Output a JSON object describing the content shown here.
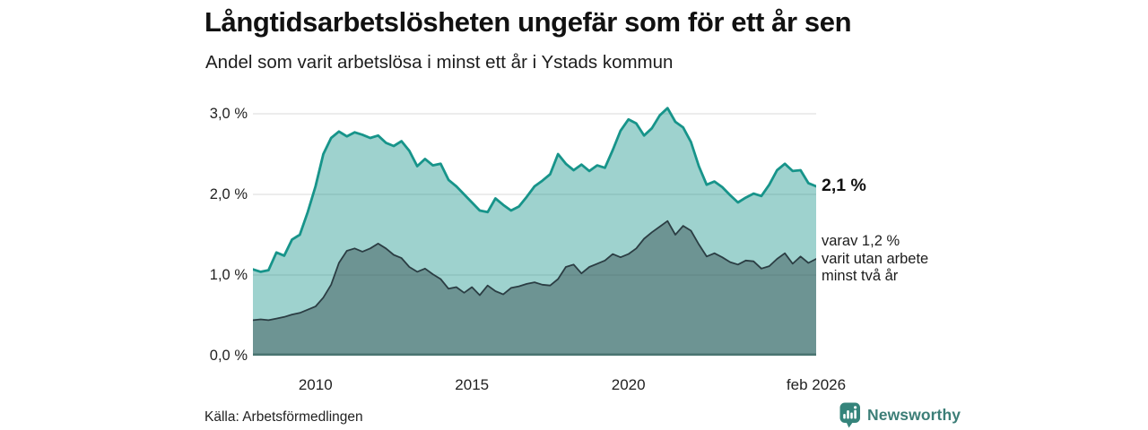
{
  "header": {
    "title": "Långtidsarbetslösheten ungefär som för ett år sen",
    "subtitle": "Andel som varit arbetslösa i minst ett år i Ystads kommun"
  },
  "annotations": {
    "total_end_label": "2,1 %",
    "subset_end_label": "varav 1,2 %\nvarit utan arbete\nminst två år"
  },
  "footer": {
    "source": "Källa: Arbetsförmedlingen",
    "brand_name": "Newsworthy"
  },
  "colors": {
    "line_total": "#17948a",
    "line_subset": "#2b3d43",
    "area_opacity": 0.42,
    "gridline": "#e0e0e0",
    "baseline": "#44706b",
    "brand_teal": "#35847b",
    "text_dark": "#1a1a1a"
  },
  "chart_data": {
    "type": "area",
    "title": "Långtidsarbetslösheten ungefär som för ett år sen",
    "subtitle": "Andel som varit arbetslösa i minst ett år i Ystads kommun",
    "x_axis": {
      "start_year": 2008.0,
      "step_years": 0.25,
      "range": [
        2008.0,
        2026.0
      ],
      "ticks": [
        {
          "label": "2010",
          "year": 2010
        },
        {
          "label": "2015",
          "year": 2015
        },
        {
          "label": "2020",
          "year": 2020
        },
        {
          "label": "feb 2026",
          "year": 2026
        }
      ]
    },
    "y_axis": {
      "unit": "%",
      "range": [
        0,
        3.1
      ],
      "gridlines": true,
      "ticks": [
        {
          "label": "0,0 %",
          "value": 0
        },
        {
          "label": "1,0 %",
          "value": 1
        },
        {
          "label": "2,0 %",
          "value": 2
        },
        {
          "label": "3,0 %",
          "value": 3
        }
      ]
    },
    "legend_position": "right-of-line-end",
    "series": [
      {
        "id": "unemployed_min_one_year",
        "label": "2,1 %",
        "end_value": 2.1,
        "values": [
          1.07,
          1.04,
          1.06,
          1.28,
          1.24,
          1.44,
          1.5,
          1.78,
          2.1,
          2.5,
          2.7,
          2.78,
          2.72,
          2.77,
          2.74,
          2.7,
          2.73,
          2.64,
          2.6,
          2.66,
          2.54,
          2.35,
          2.44,
          2.36,
          2.38,
          2.18,
          2.1,
          2.0,
          1.9,
          1.8,
          1.78,
          1.95,
          1.87,
          1.8,
          1.85,
          1.97,
          2.1,
          2.17,
          2.25,
          2.5,
          2.38,
          2.3,
          2.37,
          2.29,
          2.36,
          2.33,
          2.55,
          2.79,
          2.93,
          2.88,
          2.73,
          2.82,
          2.98,
          3.07,
          2.9,
          2.83,
          2.65,
          2.35,
          2.12,
          2.16,
          2.09,
          1.99,
          1.9,
          1.96,
          2.01,
          1.98,
          2.12,
          2.3,
          2.38,
          2.29,
          2.3,
          2.14,
          2.1
        ]
      },
      {
        "id": "unemployed_min_two_years",
        "label": "varav 1,2 % varit utan arbete minst två år",
        "end_value": 1.2,
        "values": [
          0.44,
          0.45,
          0.44,
          0.46,
          0.48,
          0.51,
          0.53,
          0.57,
          0.61,
          0.72,
          0.88,
          1.15,
          1.3,
          1.33,
          1.29,
          1.33,
          1.39,
          1.33,
          1.25,
          1.21,
          1.1,
          1.04,
          1.08,
          1.01,
          0.95,
          0.83,
          0.85,
          0.78,
          0.85,
          0.75,
          0.87,
          0.8,
          0.76,
          0.84,
          0.86,
          0.89,
          0.91,
          0.88,
          0.87,
          0.95,
          1.1,
          1.13,
          1.02,
          1.1,
          1.14,
          1.18,
          1.26,
          1.22,
          1.26,
          1.33,
          1.45,
          1.53,
          1.6,
          1.67,
          1.5,
          1.61,
          1.55,
          1.38,
          1.23,
          1.27,
          1.22,
          1.16,
          1.13,
          1.18,
          1.17,
          1.08,
          1.11,
          1.2,
          1.27,
          1.14,
          1.23,
          1.15,
          1.2
        ]
      }
    ]
  }
}
